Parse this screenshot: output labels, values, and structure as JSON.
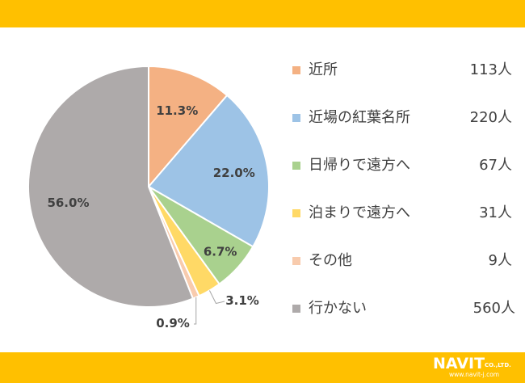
{
  "colors": {
    "band": "#ffc000",
    "label_text": "#404040",
    "slice_border": "#ffffff"
  },
  "chart_data": {
    "type": "pie",
    "title": "",
    "start_angle_deg": 0,
    "direction": "clockwise",
    "slices": [
      {
        "name": "近所",
        "count": "113人",
        "percent_label": "11.3%",
        "value": 11.3,
        "color": "#f4b183"
      },
      {
        "name": "近場の紅葉名所",
        "count": "220人",
        "percent_label": "22.0%",
        "value": 22.0,
        "color": "#9dc3e6"
      },
      {
        "name": "日帰りで遠方へ",
        "count": "67人",
        "percent_label": "6.7%",
        "value": 6.7,
        "color": "#a9d18e"
      },
      {
        "name": "泊まりで遠方へ",
        "count": "31人",
        "percent_label": "3.1%",
        "value": 3.1,
        "color": "#ffd966"
      },
      {
        "name": "その他",
        "count": "9人",
        "percent_label": "0.9%",
        "value": 0.9,
        "color": "#f8cbad"
      },
      {
        "name": "行かない",
        "count": "560人",
        "percent_label": "56.0%",
        "value": 56.0,
        "color": "#aeaaaa"
      }
    ],
    "legend_position": "right"
  },
  "logo": {
    "name": "NAVIT",
    "company_suffix": "CO.,LTD.",
    "url": "www.navit-j.com"
  }
}
